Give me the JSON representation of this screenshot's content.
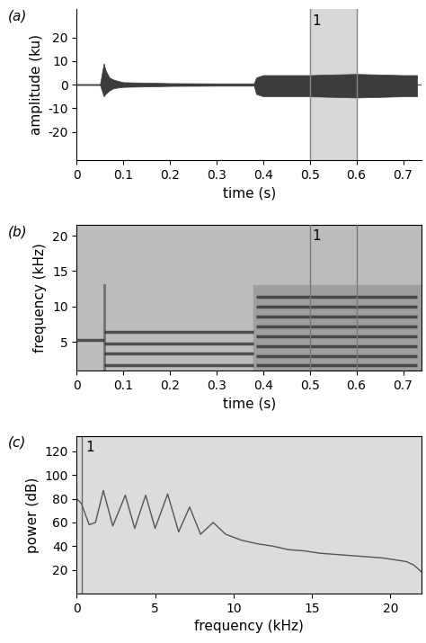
{
  "chart_data": [
    {
      "type": "area",
      "title": "(a)",
      "x_label": "time (s)",
      "y_label": "amplitude (ku)",
      "x": [
        0,
        0.05,
        0.058,
        0.062,
        0.07,
        0.08,
        0.1,
        0.2,
        0.3,
        0.38,
        0.385,
        0.4,
        0.5,
        0.6,
        0.7,
        0.73
      ],
      "upper": [
        0.2,
        0.2,
        9,
        6,
        3,
        2,
        1,
        0.6,
        0.5,
        0.5,
        3,
        4,
        4,
        4.5,
        4,
        4
      ],
      "lower": [
        -0.2,
        -0.2,
        -5,
        -4,
        -2.5,
        -1.5,
        -1,
        -0.6,
        -0.5,
        -0.5,
        -4,
        -5,
        -5,
        -5.5,
        -5,
        -5
      ],
      "color": "#3c3c3c",
      "selection": [
        0.5,
        0.6
      ],
      "selection_label": "1",
      "xlim": [
        0,
        0.74
      ],
      "xticks": [
        0,
        0.1,
        0.2,
        0.3,
        0.4,
        0.5,
        0.6,
        0.7
      ],
      "ylim": [
        -32,
        32
      ],
      "yticks": [
        -20,
        -10,
        0,
        10,
        20
      ]
    },
    {
      "type": "spectrogram",
      "title": "(b)",
      "x_label": "time (s)",
      "y_label": "frequency (kHz)",
      "bands": [
        {
          "time": [
            0.0,
            0.06
          ],
          "frequency": 5.3
        },
        {
          "time": [
            0.06,
            0.38
          ],
          "frequency": 1.8
        },
        {
          "time": [
            0.06,
            0.38
          ],
          "frequency": 3.4
        },
        {
          "time": [
            0.06,
            0.38
          ],
          "frequency": 4.8
        },
        {
          "time": [
            0.06,
            0.38
          ],
          "frequency": 6.4
        },
        {
          "time": [
            0.385,
            0.73
          ],
          "frequency": 1.7
        },
        {
          "time": [
            0.385,
            0.73
          ],
          "frequency": 3.0
        },
        {
          "time": [
            0.385,
            0.73
          ],
          "frequency": 4.4
        },
        {
          "time": [
            0.385,
            0.73
          ],
          "frequency": 5.8
        },
        {
          "time": [
            0.385,
            0.73
          ],
          "frequency": 7.2
        },
        {
          "time": [
            0.385,
            0.73
          ],
          "frequency": 8.6
        },
        {
          "time": [
            0.385,
            0.73
          ],
          "frequency": 10.0
        },
        {
          "time": [
            0.385,
            0.73
          ],
          "frequency": 11.4
        }
      ],
      "regions": [
        {
          "time": [
            0.38,
            0.74
          ],
          "frequency": [
            1,
            13
          ]
        }
      ],
      "transients": [
        {
          "time": 0.06,
          "frequency": [
            1,
            13
          ]
        }
      ],
      "color": "#2a2a2a",
      "selection": [
        0.5,
        0.6
      ],
      "selection_label": "1",
      "xlim": [
        0,
        0.74
      ],
      "xticks": [
        0,
        0.1,
        0.2,
        0.3,
        0.4,
        0.5,
        0.6,
        0.7
      ],
      "ylim": [
        1,
        21.5
      ],
      "yticks": [
        5,
        10,
        15,
        20
      ]
    },
    {
      "type": "line",
      "title": "(c)",
      "x_label": "frequency (kHz)",
      "y_label": "power (dB)",
      "x": [
        0,
        0.3,
        0.8,
        1.2,
        1.7,
        2.3,
        3.1,
        3.7,
        4.4,
        5.0,
        5.8,
        6.5,
        7.2,
        7.9,
        8.7,
        9.5,
        10.5,
        11.5,
        12.5,
        13.5,
        14.5,
        15.5,
        16.5,
        17.5,
        18.5,
        19.5,
        20.5,
        21,
        21.5,
        22
      ],
      "values": [
        80,
        76,
        58,
        60,
        87,
        57,
        83,
        55,
        83,
        55,
        84,
        52,
        73,
        50,
        60,
        50,
        45,
        42,
        40,
        37,
        36,
        34,
        33,
        32,
        31,
        30,
        28,
        27,
        24,
        18
      ],
      "color": "#555555",
      "cursor": 0.3,
      "cursor_label": "1",
      "xlim": [
        0,
        22
      ],
      "xticks": [
        0,
        5,
        10,
        15,
        20
      ],
      "ylim": [
        0,
        133
      ],
      "yticks": [
        20,
        40,
        60,
        80,
        100,
        120
      ]
    }
  ]
}
